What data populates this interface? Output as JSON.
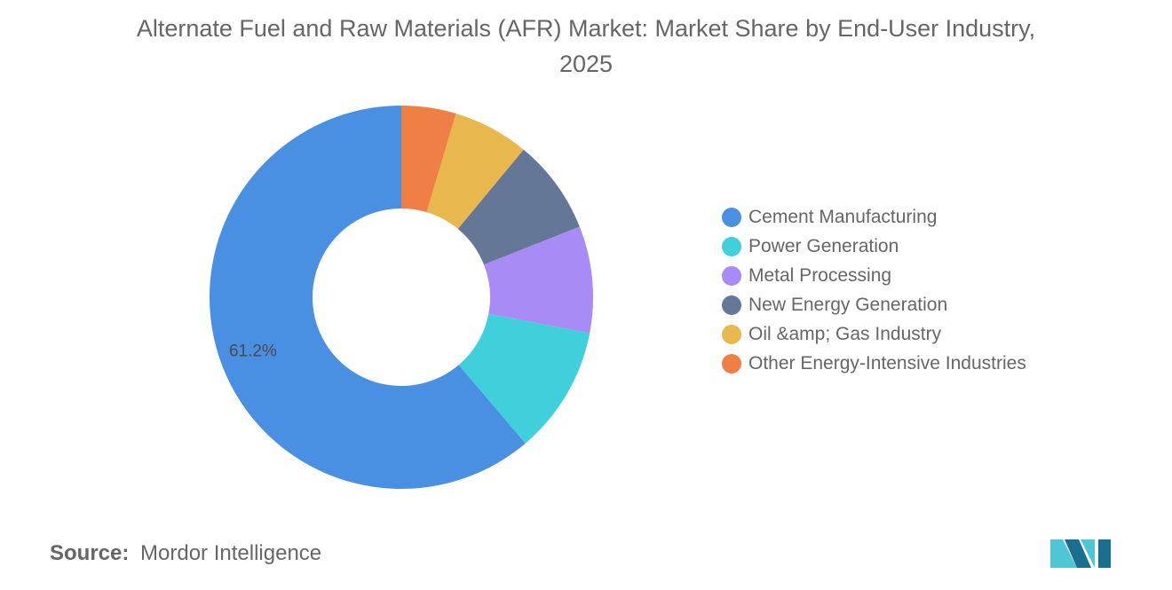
{
  "title": "Alternate Fuel and Raw Materials (AFR) Market: Market Share by End-User Industry, 2025",
  "source": {
    "label": "Source:",
    "text": "Mordor Intelligence"
  },
  "logo": {
    "icon": "mordor-intelligence-logo-icon",
    "color_dark": "#1a6f8f",
    "color_light": "#4fc6d6"
  },
  "chart_data": {
    "type": "pie",
    "donut": true,
    "title": "Alternate Fuel and Raw Materials (AFR) Market: Market Share by End-User Industry, 2025",
    "categories": [
      "Cement Manufacturing",
      "Power Generation",
      "Metal Processing",
      "New Energy Generation",
      "Oil &amp; Gas Industry",
      "Other Energy-Intensive Industries"
    ],
    "values": [
      61.2,
      10.8,
      9.0,
      8.0,
      6.4,
      4.6
    ],
    "colors": [
      "#4a90e2",
      "#40d0dc",
      "#a98bf5",
      "#657797",
      "#e8b84e",
      "#f07f45"
    ],
    "data_labels": [
      "61.2%",
      "",
      "",
      "",
      "",
      ""
    ],
    "start": "top",
    "direction": "counterclockwise",
    "legend_position": "right"
  }
}
